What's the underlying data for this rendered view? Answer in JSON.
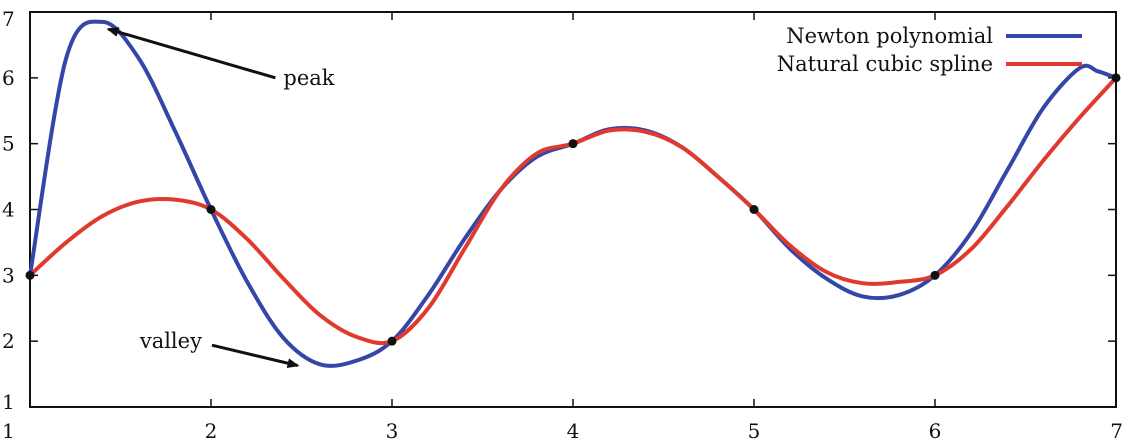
{
  "chart_data": {
    "type": "line",
    "title": "",
    "xlabel": "",
    "ylabel": "",
    "xlim": [
      1,
      7
    ],
    "ylim": [
      1,
      7
    ],
    "xticks": [
      "1",
      "2",
      "3",
      "4",
      "5",
      "6",
      "7"
    ],
    "yticks": [
      "1",
      "2",
      "3",
      "4",
      "5",
      "6",
      "7"
    ],
    "grid": false,
    "legend_position": "top-right",
    "data_points": {
      "x": [
        1,
        2,
        3,
        4,
        5,
        6,
        7
      ],
      "y": [
        3,
        4,
        2,
        5,
        4,
        3,
        6
      ]
    },
    "series": [
      {
        "name": "Newton polynomial",
        "color": "#3446a8",
        "x": [
          1.0,
          1.2,
          1.4,
          1.6,
          1.8,
          2.0,
          2.2,
          2.4,
          2.6,
          2.8,
          3.0,
          3.2,
          3.4,
          3.6,
          3.8,
          4.0,
          4.2,
          4.4,
          4.6,
          4.8,
          5.0,
          5.2,
          5.4,
          5.6,
          5.8,
          6.0,
          6.2,
          6.4,
          6.6,
          6.8,
          6.9,
          7.0
        ],
        "y": [
          3.0,
          6.3,
          6.85,
          6.3,
          5.2,
          4.0,
          2.9,
          2.05,
          1.65,
          1.7,
          2.0,
          2.7,
          3.55,
          4.3,
          4.8,
          5.0,
          5.22,
          5.2,
          4.95,
          4.5,
          4.0,
          3.4,
          2.95,
          2.68,
          2.7,
          3.0,
          3.65,
          4.6,
          5.55,
          6.15,
          6.1,
          6.0
        ]
      },
      {
        "name": "Natural cubic spline",
        "color": "#e03a2f",
        "x": [
          1.0,
          1.2,
          1.4,
          1.6,
          1.8,
          2.0,
          2.2,
          2.4,
          2.6,
          2.8,
          3.0,
          3.2,
          3.4,
          3.6,
          3.8,
          4.0,
          4.2,
          4.4,
          4.6,
          4.8,
          5.0,
          5.2,
          5.4,
          5.6,
          5.8,
          6.0,
          6.2,
          6.4,
          6.6,
          6.8,
          7.0
        ],
        "y": [
          3.0,
          3.5,
          3.9,
          4.12,
          4.15,
          4.0,
          3.55,
          2.95,
          2.4,
          2.07,
          2.0,
          2.5,
          3.4,
          4.3,
          4.85,
          5.0,
          5.2,
          5.18,
          4.95,
          4.5,
          4.0,
          3.45,
          3.05,
          2.88,
          2.9,
          3.0,
          3.4,
          4.05,
          4.75,
          5.4,
          6.0
        ]
      }
    ],
    "annotations": [
      {
        "text": "peak",
        "text_at": [
          2.4,
          6.0
        ],
        "arrow_to": [
          1.4,
          6.8
        ]
      },
      {
        "text": "valley",
        "text_at": [
          1.95,
          2.0
        ],
        "arrow_to": [
          2.5,
          1.6
        ]
      }
    ]
  }
}
